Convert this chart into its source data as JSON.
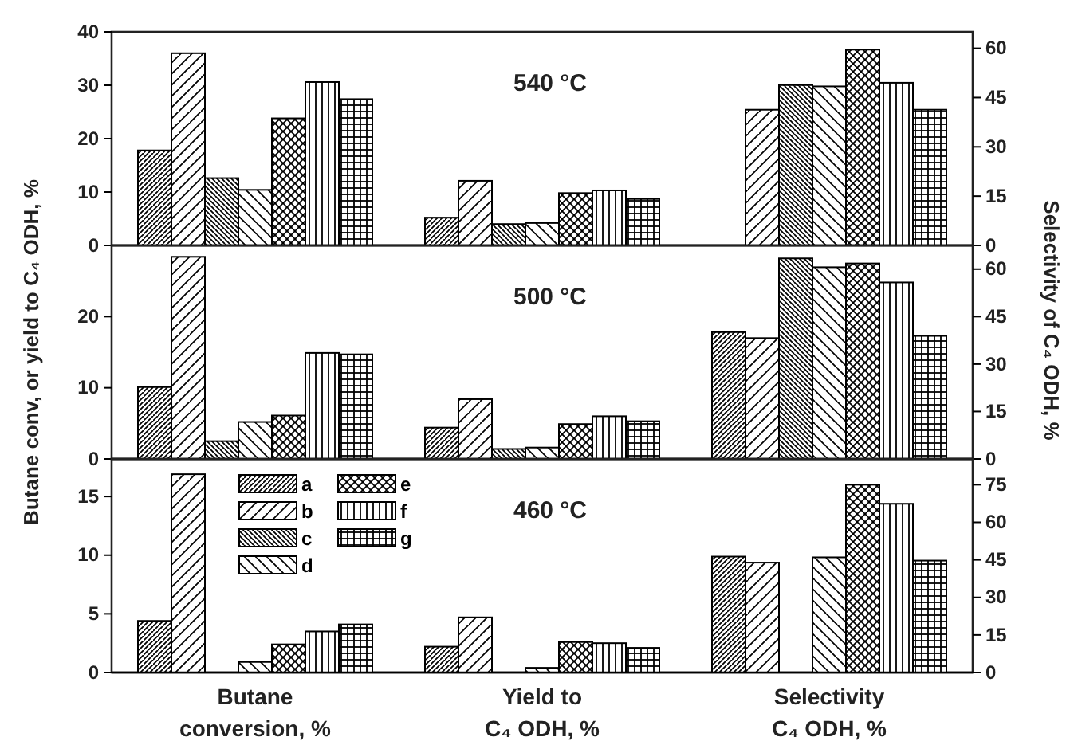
{
  "chart_data": [
    {
      "type": "bar",
      "title": "540 °C",
      "categories": [
        null,
        null,
        null
      ],
      "ylim": [
        0,
        40
      ],
      "yticks": [
        0,
        10,
        20,
        30,
        40
      ],
      "y2lim": [
        0,
        65
      ],
      "y2ticks": [
        0,
        15,
        30,
        45,
        60
      ],
      "tick_labels": "y",
      "series": [
        {
          "color": "#000000",
          "values": [
            17.8,
            5.2,
            null
          ]
        },
        {
          "color": "#000000",
          "values": [
            36.0,
            12.1,
            null
          ]
        },
        {
          "color": "#000000",
          "values": [
            12.6,
            4.0,
            null
          ]
        },
        {
          "color": "#000000",
          "values": [
            10.4,
            4.2,
            null
          ]
        },
        {
          "color": "#000000",
          "values": [
            23.8,
            9.8,
            null
          ]
        },
        {
          "color": "#000000",
          "values": [
            30.6,
            10.3,
            null
          ]
        },
        {
          "color": "#000000",
          "values": [
            27.4,
            8.7,
            null
          ]
        },
        {
          "color": "#000000",
          "axis": "y2",
          "values": [
            null,
            null,
            null
          ]
        },
        {
          "color": "#000000",
          "axis": "y2",
          "values": [
            null,
            null,
            41.3
          ]
        },
        {
          "color": "#000000",
          "axis": "y2",
          "values": [
            null,
            null,
            48.8
          ]
        },
        {
          "color": "#000000",
          "axis": "y2",
          "values": [
            null,
            null,
            48.4
          ]
        },
        {
          "color": "#000000",
          "axis": "y2",
          "values": [
            null,
            null,
            59.6
          ]
        },
        {
          "color": "#000000",
          "axis": "y2",
          "values": [
            null,
            null,
            49.5
          ]
        },
        {
          "color": "#000000",
          "axis": "y2",
          "values": [
            null,
            null,
            41.3
          ]
        }
      ]
    },
    {
      "type": "bar",
      "title": "500 °C",
      "ylabel": "Butane conv, or yield to C₄ ODH, %",
      "y2label": "Selectivity of C₄ ODH, %",
      "categories": [
        null,
        null,
        null
      ],
      "ylim": [
        0,
        30
      ],
      "yticks": [
        0,
        10,
        20
      ],
      "y2lim": [
        0,
        67.5
      ],
      "y2ticks": [
        0,
        15,
        30,
        45,
        60
      ],
      "tick_labels": "y",
      "series": [
        {
          "color": "#000000",
          "values": [
            10.1,
            4.4,
            null
          ]
        },
        {
          "color": "#000000",
          "values": [
            28.4,
            8.4,
            null
          ]
        },
        {
          "color": "#000000",
          "values": [
            2.5,
            1.4,
            null
          ]
        },
        {
          "color": "#000000",
          "values": [
            5.2,
            1.6,
            null
          ]
        },
        {
          "color": "#000000",
          "values": [
            6.1,
            4.9,
            null
          ]
        },
        {
          "color": "#000000",
          "values": [
            14.9,
            6.0,
            null
          ]
        },
        {
          "color": "#000000",
          "values": [
            14.7,
            5.3,
            null
          ]
        },
        {
          "color": "#000000",
          "axis": "y2",
          "values": [
            null,
            null,
            40.1
          ]
        },
        {
          "color": "#000000",
          "axis": "y2",
          "values": [
            null,
            null,
            38.2
          ]
        },
        {
          "color": "#000000",
          "axis": "y2",
          "values": [
            null,
            null,
            63.4
          ]
        },
        {
          "color": "#000000",
          "axis": "y2",
          "values": [
            null,
            null,
            60.6
          ]
        },
        {
          "color": "#000000",
          "axis": "y2",
          "values": [
            null,
            null,
            61.8
          ]
        },
        {
          "color": "#000000",
          "axis": "y2",
          "values": [
            null,
            null,
            55.8
          ]
        },
        {
          "color": "#000000",
          "axis": "y2",
          "values": [
            null,
            null,
            38.9
          ]
        }
      ]
    },
    {
      "type": "bar",
      "title": "460 °C",
      "categories": [
        "Butane conversion, %",
        "Yield to C₄ ODH, %",
        "Selectivity C₄ ODH, %"
      ],
      "ylim": [
        0,
        18.2
      ],
      "yticks": [
        0,
        5,
        10,
        15
      ],
      "y2lim": [
        0,
        85.3
      ],
      "y2ticks": [
        0,
        15,
        30,
        45,
        60,
        75
      ],
      "legend": "top left",
      "series": [
        {
          "name": "a",
          "color": "#000000",
          "values": [
            4.4,
            2.2,
            null
          ]
        },
        {
          "name": "b",
          "color": "#000000",
          "values": [
            16.9,
            4.7,
            null
          ]
        },
        {
          "name": "c",
          "color": "#000000",
          "values": [
            null,
            null,
            null
          ]
        },
        {
          "name": "d",
          "color": "#000000",
          "values": [
            0.9,
            0.4,
            null
          ]
        },
        {
          "name": "e",
          "color": "#000000",
          "values": [
            2.4,
            2.6,
            null
          ]
        },
        {
          "name": "f",
          "color": "#000000",
          "values": [
            3.5,
            2.5,
            null
          ]
        },
        {
          "name": "g",
          "color": "#000000",
          "values": [
            4.1,
            2.1,
            null
          ]
        },
        {
          "color": "#000000",
          "axis": "y2",
          "values": [
            null,
            null,
            46.3
          ]
        },
        {
          "color": "#000000",
          "axis": "y2",
          "values": [
            null,
            null,
            43.9
          ]
        },
        {
          "color": "#000000",
          "axis": "y2",
          "values": [
            null,
            null,
            null
          ]
        },
        {
          "color": "#000000",
          "axis": "y2",
          "values": [
            null,
            null,
            46.0
          ]
        },
        {
          "color": "#000000",
          "axis": "y2",
          "values": [
            null,
            null,
            75.0
          ]
        },
        {
          "color": "#000000",
          "axis": "y2",
          "values": [
            null,
            null,
            67.4
          ]
        },
        {
          "color": "#000000",
          "axis": "y2",
          "values": [
            null,
            null,
            44.7
          ]
        }
      ]
    }
  ]
}
